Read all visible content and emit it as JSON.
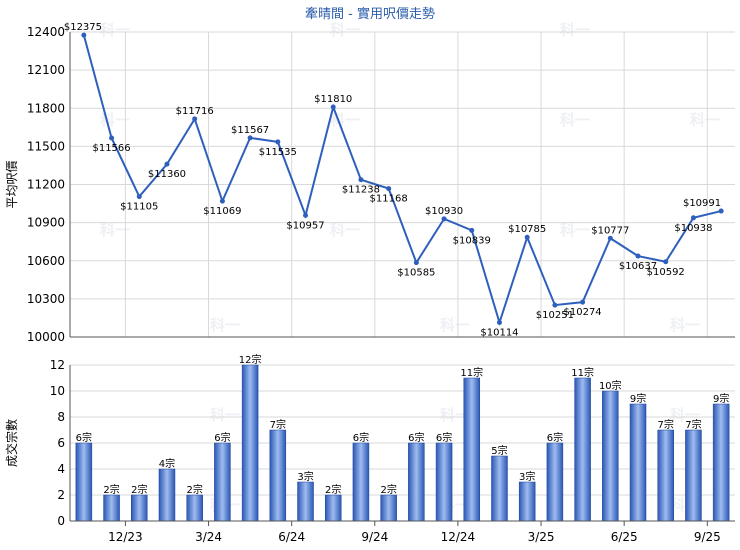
{
  "title": "牽晴間 - 實用呎價走勢",
  "watermark": "科一",
  "colors": {
    "line": "#2f5fbd",
    "bar_dark": "#2a57b5",
    "bar_light": "#9fbcf0"
  },
  "chart_data": [
    {
      "type": "line",
      "ylabel": "平均呎價",
      "ylim": [
        10000,
        12400
      ],
      "yticks": [
        10000,
        10300,
        10600,
        10900,
        11200,
        11500,
        11800,
        12100,
        12400
      ],
      "grid": true,
      "series": [
        {
          "values": [
            12375,
            11566,
            11105,
            11360,
            11716,
            11069,
            11567,
            11535,
            10957,
            11810,
            11238,
            11168,
            10585,
            10930,
            10839,
            10114,
            10785,
            10251,
            10274,
            10777,
            10637,
            10592,
            10938,
            10991
          ],
          "labels": [
            "$12375",
            "$11566",
            "$11105",
            "$11360",
            "$11716",
            "$11069",
            "$11567",
            "$11535",
            "$10957",
            "$11810",
            "$11238",
            "$11168",
            "$10585",
            "$10930",
            "$10839",
            "$10114",
            "$10785",
            "$10251",
            "$10274",
            "$10777",
            "$10637",
            "$10592",
            "$10938",
            "$10991"
          ]
        }
      ]
    },
    {
      "type": "bar",
      "ylabel": "成交宗數",
      "ylim": [
        0,
        12
      ],
      "yticks": [
        0,
        2,
        4,
        6,
        8,
        10,
        12
      ],
      "grid": true,
      "xticks": [
        "12/23",
        "3/24",
        "6/24",
        "9/24",
        "12/24",
        "3/25",
        "6/25",
        "9/25"
      ],
      "xtick_positions": [
        2,
        5,
        8,
        11,
        14,
        17,
        20,
        23
      ],
      "series": [
        {
          "values": [
            6,
            2,
            2,
            4,
            2,
            6,
            12,
            7,
            3,
            2,
            6,
            2,
            6,
            6,
            11,
            5,
            3,
            6,
            11,
            10,
            9,
            7,
            7,
            9
          ],
          "labels": [
            "6宗",
            "2宗",
            "2宗",
            "4宗",
            "2宗",
            "6宗",
            "12宗",
            "7宗",
            "3宗",
            "2宗",
            "6宗",
            "2宗",
            "6宗",
            "6宗",
            "11宗",
            "5宗",
            "3宗",
            "6宗",
            "11宗",
            "10宗",
            "9宗",
            "7宗",
            "7宗",
            "9宗"
          ]
        }
      ]
    }
  ]
}
